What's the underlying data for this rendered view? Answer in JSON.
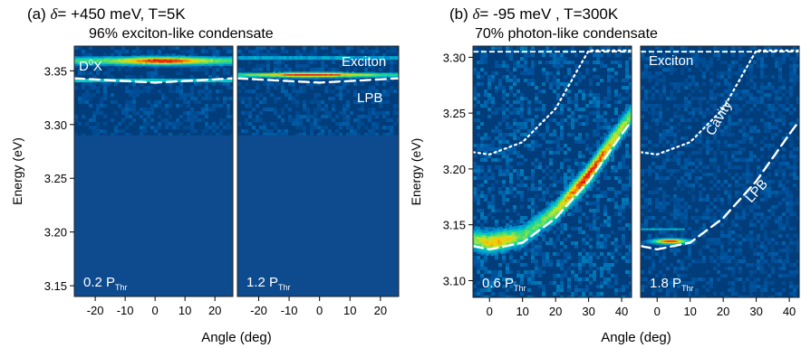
{
  "panel_a": {
    "tag": "(a)",
    "symbol": "δ",
    "params": "= +450 meV, T=5K",
    "subtitle": "96% exciton-like condensate"
  },
  "panel_b": {
    "tag": "(b)",
    "symbol": "δ",
    "params": "= -95 meV , T=300K",
    "subtitle": "70% photon-like condensate"
  },
  "chart_data": [
    {
      "type": "heatmap",
      "panel": "a-left",
      "ylabel": "Energy (eV)",
      "xlabel": "",
      "xlim": [
        -27,
        26
      ],
      "ylim": [
        3.14,
        3.373
      ],
      "x_ticks": [
        -20,
        -10,
        0,
        10,
        20
      ],
      "x_tick_labels": [
        "-20",
        "-10",
        "0",
        "10",
        "20"
      ],
      "y_ticks": [
        3.15,
        3.2,
        3.25,
        3.3,
        3.35
      ],
      "y_tick_labels": [
        "3.15",
        "3.20",
        "3.25",
        "3.30",
        "3.35"
      ],
      "detection_cutoff_eV": 3.29,
      "emission_band": {
        "center_eV": 3.359,
        "label": "D⁰X"
      },
      "curves": [
        {
          "name": "LPB",
          "style": "dashed",
          "points": [
            [
              -27,
              3.343
            ],
            [
              0,
              3.339
            ],
            [
              26,
              3.343
            ]
          ]
        }
      ],
      "power_label": "0.2 P",
      "power_sub": "Thr"
    },
    {
      "type": "heatmap",
      "panel": "a-right",
      "xlim": [
        -27,
        26
      ],
      "ylim": [
        3.14,
        3.373
      ],
      "x_ticks": [
        -20,
        -10,
        0,
        10,
        20
      ],
      "x_tick_labels": [
        "-20",
        "-10",
        "0",
        "10",
        "20"
      ],
      "detection_cutoff_eV": 3.29,
      "emission_band": {
        "center_eV": 3.346
      },
      "curves": [
        {
          "name": "LPB",
          "style": "dashed",
          "points": [
            [
              -27,
              3.343
            ],
            [
              0,
              3.339
            ],
            [
              26,
              3.343
            ]
          ]
        }
      ],
      "annotations": [
        "Exciton",
        "LPB"
      ],
      "power_label": "1.2 P",
      "power_sub": "Thr"
    },
    {
      "type": "heatmap",
      "panel": "b-left",
      "ylabel": "Energy (eV)",
      "xlim": [
        -5,
        43
      ],
      "ylim": [
        3.085,
        3.31
      ],
      "x_ticks": [
        0,
        10,
        20,
        30,
        40
      ],
      "x_tick_labels": [
        "0",
        "10",
        "20",
        "30",
        "40"
      ],
      "y_ticks": [
        3.1,
        3.15,
        3.2,
        3.25,
        3.3
      ],
      "y_tick_labels": [
        "3.10",
        "3.15",
        "3.20",
        "3.25",
        "3.30"
      ],
      "exciton_line_eV": 3.305,
      "curves": [
        {
          "name": "Cavity",
          "style": "dotted",
          "points": [
            [
              -5,
              3.215
            ],
            [
              0,
              3.213
            ],
            [
              10,
              3.224
            ],
            [
              20,
              3.254
            ],
            [
              30,
              3.306
            ]
          ]
        },
        {
          "name": "LPB",
          "style": "dashed",
          "points": [
            [
              -5,
              3.131
            ],
            [
              0,
              3.128
            ],
            [
              10,
              3.134
            ],
            [
              20,
              3.156
            ],
            [
              30,
              3.189
            ],
            [
              40,
              3.231
            ],
            [
              43,
              3.243
            ]
          ]
        }
      ],
      "power_label": "0.6 P",
      "power_sub": "Thr"
    },
    {
      "type": "heatmap",
      "panel": "b-right",
      "xlim": [
        -5,
        43
      ],
      "ylim": [
        3.085,
        3.31
      ],
      "x_ticks": [
        0,
        10,
        20,
        30,
        40
      ],
      "x_tick_labels": [
        "0",
        "10",
        "20",
        "30",
        "40"
      ],
      "exciton_line_eV": 3.305,
      "emission_band": {
        "center_eV": 3.135
      },
      "curves": [
        {
          "name": "Cavity",
          "style": "dotted",
          "points": [
            [
              -5,
              3.215
            ],
            [
              0,
              3.213
            ],
            [
              10,
              3.224
            ],
            [
              20,
              3.254
            ],
            [
              30,
              3.306
            ]
          ]
        },
        {
          "name": "LPB",
          "style": "dashed",
          "points": [
            [
              -5,
              3.131
            ],
            [
              0,
              3.128
            ],
            [
              10,
              3.134
            ],
            [
              20,
              3.156
            ],
            [
              30,
              3.189
            ],
            [
              40,
              3.231
            ],
            [
              43,
              3.243
            ]
          ]
        }
      ],
      "annotations": [
        "Exciton",
        "Cavity",
        "LPB"
      ],
      "power_label": "1.8 P",
      "power_sub": "Thr"
    }
  ],
  "shared_xlabel": "Angle (deg)",
  "colors": {
    "background": "#003d7a",
    "cutoff_fill": "#0e4a8e",
    "curve": "#ffffff"
  }
}
